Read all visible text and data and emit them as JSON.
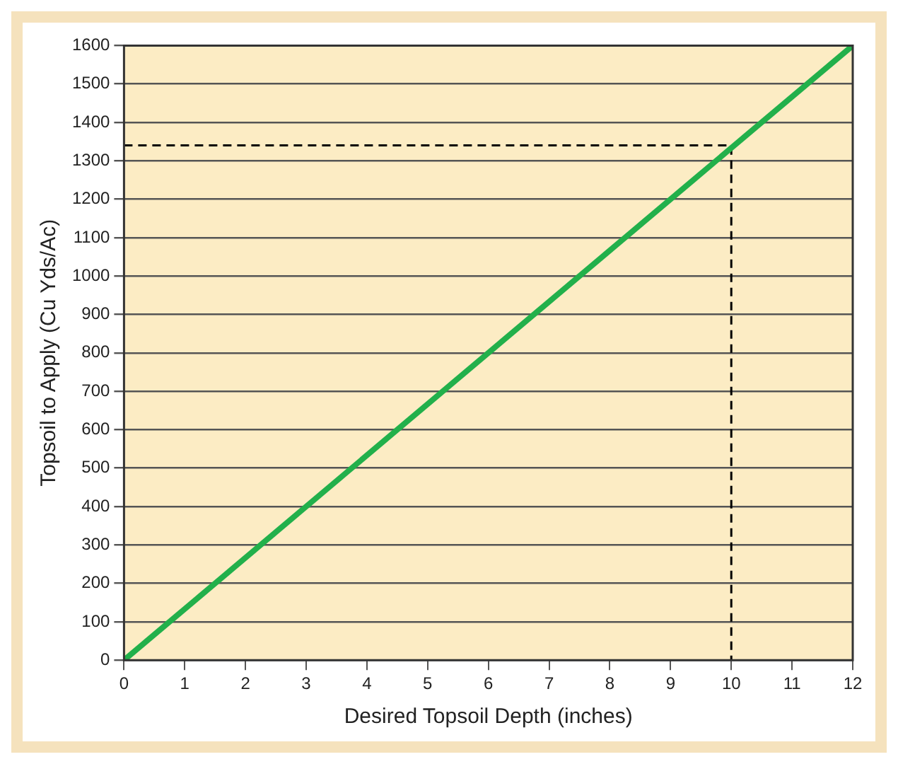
{
  "chart_data": {
    "type": "line",
    "xlabel": "Desired Topsoil Depth (inches)",
    "ylabel": "Topsoil to Apply (Cu Yds/Ac)",
    "series": [
      {
        "color": "#22b04b",
        "x": [
          0,
          12
        ],
        "values": [
          0,
          1600
        ],
        "line_style": "solid"
      },
      {
        "color": "#000000",
        "x": [
          0,
          10,
          10
        ],
        "values": [
          1340,
          1340,
          0
        ],
        "line_style": "dashed"
      }
    ],
    "xlim": [
      0,
      12
    ],
    "xticks": [
      0,
      1,
      2,
      3,
      4,
      5,
      6,
      7,
      8,
      9,
      10,
      11,
      12
    ],
    "ylim": [
      0,
      1600
    ],
    "yticks": [
      0,
      100,
      200,
      300,
      400,
      500,
      600,
      700,
      800,
      900,
      1000,
      1100,
      1200,
      1300,
      1400,
      1500,
      1600
    ],
    "grid": "y",
    "legend": false,
    "marker": "none"
  }
}
